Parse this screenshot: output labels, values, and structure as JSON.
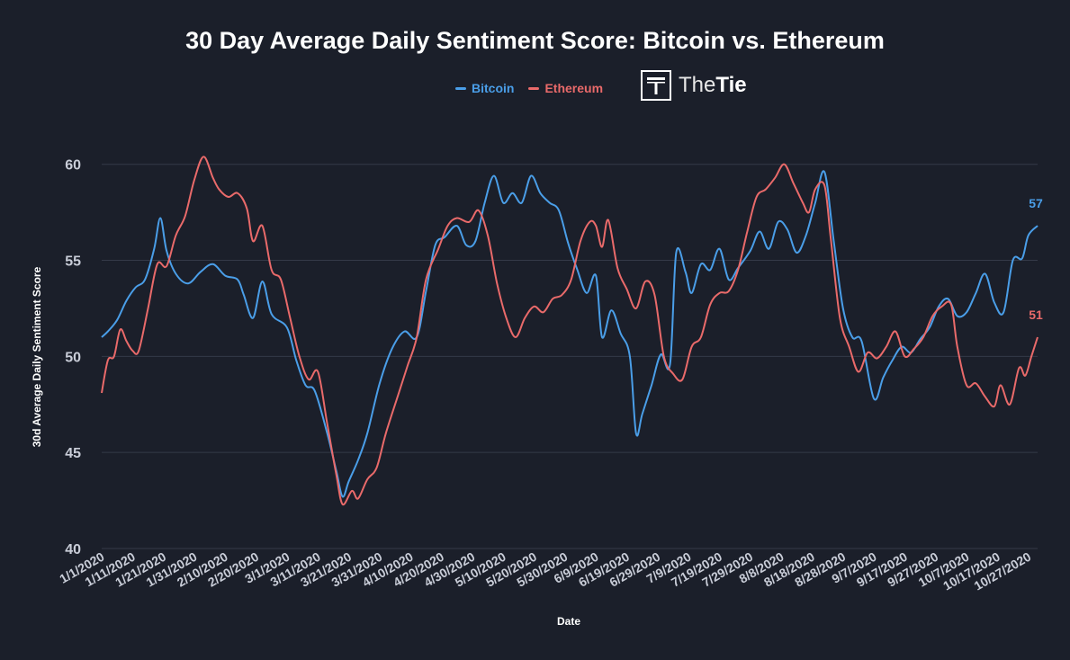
{
  "chart_data": {
    "type": "line",
    "title": "30 Day Average Daily Sentiment Score: Bitcoin vs. Ethereum",
    "xlabel": "Date",
    "ylabel": "30d Average Daily Sentiment Score",
    "ylim": [
      40,
      62
    ],
    "yticks": [
      "40",
      "45",
      "50",
      "55",
      "60"
    ],
    "grid": true,
    "legend_position": "top-center",
    "x_range": [
      "1/1/2020",
      "10/30/2020"
    ],
    "x_tick_labels": [
      "1/1/2020",
      "1/11/2020",
      "1/21/2020",
      "1/31/2020",
      "2/10/2020",
      "2/20/2020",
      "3/1/2020",
      "3/11/2020",
      "3/21/2020",
      "3/31/2020",
      "4/10/2020",
      "4/20/2020",
      "4/30/2020",
      "5/10/2020",
      "5/20/2020",
      "5/30/2020",
      "6/9/2020",
      "6/19/2020",
      "6/29/2020",
      "7/9/2020",
      "7/19/2020",
      "7/29/2020",
      "8/8/2020",
      "8/18/2020",
      "8/28/2020",
      "9/7/2020",
      "9/17/2020",
      "9/27/2020",
      "10/7/2020",
      "10/17/2020",
      "10/27/2020"
    ],
    "series": [
      {
        "name": "Bitcoin",
        "color": "#4a9ee8",
        "end_label": "57",
        "points": [
          [
            "1/1/2020",
            51.0
          ],
          [
            "1/3/2020",
            51.3
          ],
          [
            "1/6/2020",
            51.9
          ],
          [
            "1/9/2020",
            52.9
          ],
          [
            "1/12/2020",
            53.6
          ],
          [
            "1/15/2020",
            54.0
          ],
          [
            "1/18/2020",
            55.6
          ],
          [
            "1/20/2020",
            57.2
          ],
          [
            "1/22/2020",
            55.5
          ],
          [
            "1/25/2020",
            54.3
          ],
          [
            "1/29/2020",
            53.8
          ],
          [
            "2/2/2020",
            54.4
          ],
          [
            "2/6/2020",
            54.8
          ],
          [
            "2/10/2020",
            54.2
          ],
          [
            "2/14/2020",
            54.0
          ],
          [
            "2/16/2020",
            53.2
          ],
          [
            "2/19/2020",
            52.0
          ],
          [
            "2/22/2020",
            53.9
          ],
          [
            "2/25/2020",
            52.2
          ],
          [
            "3/1/2020",
            51.5
          ],
          [
            "3/4/2020",
            49.8
          ],
          [
            "3/7/2020",
            48.5
          ],
          [
            "3/10/2020",
            48.2
          ],
          [
            "3/14/2020",
            46.0
          ],
          [
            "3/17/2020",
            44.0
          ],
          [
            "3/19/2020",
            42.7
          ],
          [
            "3/21/2020",
            43.5
          ],
          [
            "3/24/2020",
            44.6
          ],
          [
            "3/27/2020",
            46.0
          ],
          [
            "3/31/2020",
            48.6
          ],
          [
            "4/4/2020",
            50.4
          ],
          [
            "4/8/2020",
            51.3
          ],
          [
            "4/12/2020",
            51.0
          ],
          [
            "4/15/2020",
            53.4
          ],
          [
            "4/18/2020",
            55.8
          ],
          [
            "4/21/2020",
            56.2
          ],
          [
            "4/25/2020",
            56.8
          ],
          [
            "4/28/2020",
            55.8
          ],
          [
            "5/1/2020",
            56.0
          ],
          [
            "5/4/2020",
            58.0
          ],
          [
            "5/7/2020",
            59.4
          ],
          [
            "5/10/2020",
            58.0
          ],
          [
            "5/13/2020",
            58.5
          ],
          [
            "5/16/2020",
            58.0
          ],
          [
            "5/19/2020",
            59.4
          ],
          [
            "5/22/2020",
            58.5
          ],
          [
            "5/25/2020",
            58.0
          ],
          [
            "5/28/2020",
            57.6
          ],
          [
            "5/31/2020",
            55.9
          ],
          [
            "6/3/2020",
            54.5
          ],
          [
            "6/6/2020",
            53.3
          ],
          [
            "6/9/2020",
            54.2
          ],
          [
            "6/11/2020",
            51.0
          ],
          [
            "6/14/2020",
            52.4
          ],
          [
            "6/17/2020",
            51.2
          ],
          [
            "6/20/2020",
            50.0
          ],
          [
            "6/22/2020",
            46.0
          ],
          [
            "6/24/2020",
            47.0
          ],
          [
            "6/27/2020",
            48.5
          ],
          [
            "6/30/2020",
            50.1
          ],
          [
            "7/3/2020",
            49.6
          ],
          [
            "7/5/2020",
            55.4
          ],
          [
            "7/8/2020",
            54.4
          ],
          [
            "7/10/2020",
            53.3
          ],
          [
            "7/13/2020",
            54.8
          ],
          [
            "7/16/2020",
            54.5
          ],
          [
            "7/19/2020",
            55.6
          ],
          [
            "7/22/2020",
            54.0
          ],
          [
            "7/25/2020",
            54.6
          ],
          [
            "7/29/2020",
            55.5
          ],
          [
            "8/1/2020",
            56.5
          ],
          [
            "8/4/2020",
            55.6
          ],
          [
            "8/7/2020",
            57.0
          ],
          [
            "8/10/2020",
            56.6
          ],
          [
            "8/13/2020",
            55.4
          ],
          [
            "8/16/2020",
            56.3
          ],
          [
            "8/19/2020",
            58.0
          ],
          [
            "8/22/2020",
            59.6
          ],
          [
            "8/25/2020",
            56.0
          ],
          [
            "8/28/2020",
            52.5
          ],
          [
            "8/31/2020",
            51.0
          ],
          [
            "9/3/2020",
            50.8
          ],
          [
            "9/7/2020",
            47.8
          ],
          [
            "9/10/2020",
            48.9
          ],
          [
            "9/13/2020",
            49.8
          ],
          [
            "9/16/2020",
            50.5
          ],
          [
            "9/19/2020",
            50.2
          ],
          [
            "9/22/2020",
            50.9
          ],
          [
            "9/25/2020",
            51.5
          ],
          [
            "9/28/2020",
            52.6
          ],
          [
            "10/1/2020",
            53.0
          ],
          [
            "10/4/2020",
            52.1
          ],
          [
            "10/7/2020",
            52.3
          ],
          [
            "10/10/2020",
            53.3
          ],
          [
            "10/13/2020",
            54.3
          ],
          [
            "10/16/2020",
            52.8
          ],
          [
            "10/19/2020",
            52.3
          ],
          [
            "10/22/2020",
            55.0
          ],
          [
            "10/25/2020",
            55.1
          ],
          [
            "10/27/2020",
            56.3
          ],
          [
            "10/30/2020",
            56.8
          ]
        ]
      },
      {
        "name": "Ethereum",
        "color": "#e96a6a",
        "end_label": "51",
        "points": [
          [
            "1/1/2020",
            48.1
          ],
          [
            "1/3/2020",
            49.8
          ],
          [
            "1/5/2020",
            50.0
          ],
          [
            "1/7/2020",
            51.4
          ],
          [
            "1/9/2020",
            50.8
          ],
          [
            "1/11/2020",
            50.3
          ],
          [
            "1/13/2020",
            50.3
          ],
          [
            "1/16/2020",
            52.5
          ],
          [
            "1/19/2020",
            54.8
          ],
          [
            "1/22/2020",
            54.7
          ],
          [
            "1/25/2020",
            56.3
          ],
          [
            "1/28/2020",
            57.3
          ],
          [
            "1/31/2020",
            59.2
          ],
          [
            "2/3/2020",
            60.4
          ],
          [
            "2/6/2020",
            59.3
          ],
          [
            "2/8/2020",
            58.7
          ],
          [
            "2/11/2020",
            58.3
          ],
          [
            "2/14/2020",
            58.5
          ],
          [
            "2/17/2020",
            57.7
          ],
          [
            "2/19/2020",
            56.0
          ],
          [
            "2/22/2020",
            56.8
          ],
          [
            "2/25/2020",
            54.5
          ],
          [
            "2/28/2020",
            54.0
          ],
          [
            "3/2/2020",
            52.0
          ],
          [
            "3/5/2020",
            50.0
          ],
          [
            "3/8/2020",
            48.8
          ],
          [
            "3/11/2020",
            49.2
          ],
          [
            "3/14/2020",
            46.5
          ],
          [
            "3/17/2020",
            43.8
          ],
          [
            "3/19/2020",
            42.3
          ],
          [
            "3/22/2020",
            43.0
          ],
          [
            "3/24/2020",
            42.6
          ],
          [
            "3/27/2020",
            43.6
          ],
          [
            "3/30/2020",
            44.2
          ],
          [
            "4/2/2020",
            46.0
          ],
          [
            "4/6/2020",
            48.0
          ],
          [
            "4/9/2020",
            49.5
          ],
          [
            "4/12/2020",
            51.0
          ],
          [
            "4/15/2020",
            54.0
          ],
          [
            "4/19/2020",
            55.6
          ],
          [
            "4/22/2020",
            56.8
          ],
          [
            "4/25/2020",
            57.2
          ],
          [
            "4/29/2020",
            57.0
          ],
          [
            "5/2/2020",
            57.6
          ],
          [
            "5/5/2020",
            56.3
          ],
          [
            "5/8/2020",
            53.8
          ],
          [
            "5/11/2020",
            52.0
          ],
          [
            "5/14/2020",
            51.0
          ],
          [
            "5/17/2020",
            52.0
          ],
          [
            "5/20/2020",
            52.6
          ],
          [
            "5/23/2020",
            52.3
          ],
          [
            "5/26/2020",
            53.0
          ],
          [
            "5/29/2020",
            53.2
          ],
          [
            "6/1/2020",
            54.0
          ],
          [
            "6/4/2020",
            56.0
          ],
          [
            "6/7/2020",
            57.0
          ],
          [
            "6/9/2020",
            56.8
          ],
          [
            "6/11/2020",
            55.7
          ],
          [
            "6/13/2020",
            57.1
          ],
          [
            "6/16/2020",
            54.6
          ],
          [
            "6/19/2020",
            53.5
          ],
          [
            "6/22/2020",
            52.5
          ],
          [
            "6/25/2020",
            53.9
          ],
          [
            "6/28/2020",
            53.2
          ],
          [
            "7/1/2020",
            50.0
          ],
          [
            "7/4/2020",
            49.1
          ],
          [
            "7/7/2020",
            48.8
          ],
          [
            "7/10/2020",
            50.5
          ],
          [
            "7/13/2020",
            51.0
          ],
          [
            "7/16/2020",
            52.7
          ],
          [
            "7/19/2020",
            53.3
          ],
          [
            "7/22/2020",
            53.4
          ],
          [
            "7/25/2020",
            54.5
          ],
          [
            "7/28/2020",
            56.5
          ],
          [
            "7/31/2020",
            58.3
          ],
          [
            "8/3/2020",
            58.7
          ],
          [
            "8/6/2020",
            59.3
          ],
          [
            "8/9/2020",
            60.0
          ],
          [
            "8/12/2020",
            59.0
          ],
          [
            "8/15/2020",
            58.0
          ],
          [
            "8/17/2020",
            57.5
          ],
          [
            "8/19/2020",
            58.7
          ],
          [
            "8/22/2020",
            58.9
          ],
          [
            "8/24/2020",
            56.2
          ],
          [
            "8/27/2020",
            52.0
          ],
          [
            "8/30/2020",
            50.5
          ],
          [
            "9/2/2020",
            49.2
          ],
          [
            "9/5/2020",
            50.2
          ],
          [
            "9/8/2020",
            49.9
          ],
          [
            "9/11/2020",
            50.5
          ],
          [
            "9/14/2020",
            51.3
          ],
          [
            "9/17/2020",
            50.0
          ],
          [
            "9/20/2020",
            50.4
          ],
          [
            "9/23/2020",
            51.0
          ],
          [
            "9/26/2020",
            52.1
          ],
          [
            "9/29/2020",
            52.6
          ],
          [
            "10/2/2020",
            52.7
          ],
          [
            "10/4/2020",
            50.5
          ],
          [
            "10/7/2020",
            48.5
          ],
          [
            "10/10/2020",
            48.6
          ],
          [
            "10/13/2020",
            47.9
          ],
          [
            "10/16/2020",
            47.4
          ],
          [
            "10/18/2020",
            48.5
          ],
          [
            "10/21/2020",
            47.5
          ],
          [
            "10/24/2020",
            49.4
          ],
          [
            "10/26/2020",
            49.0
          ],
          [
            "10/28/2020",
            50.0
          ],
          [
            "10/30/2020",
            51.0
          ]
        ]
      }
    ]
  },
  "branding": {
    "logo_prefix": "The",
    "logo_suffix": "Tie"
  }
}
